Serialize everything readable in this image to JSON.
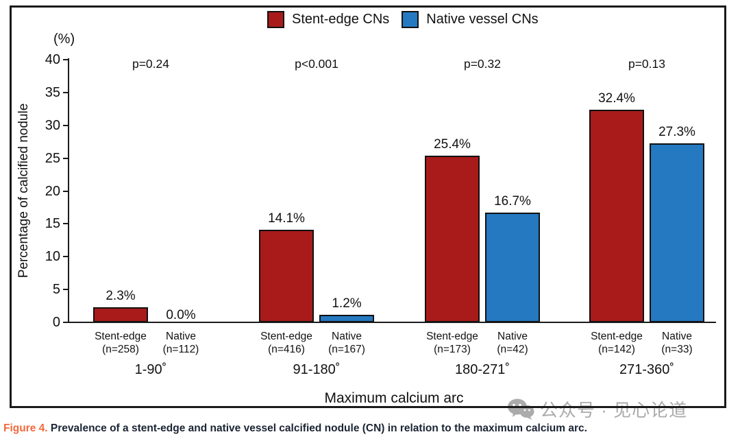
{
  "chart_data": {
    "type": "bar",
    "title": "",
    "ylabel": "Percentage of calcified nodule",
    "ylabel_unit": "(%)",
    "xlabel": "Maximum calcium arc",
    "ylim": [
      0,
      40
    ],
    "yticks": [
      0,
      5,
      10,
      15,
      20,
      25,
      30,
      35,
      40
    ],
    "grid": false,
    "legend_position": "top-center",
    "categories": [
      "1-90˚",
      "91-180˚",
      "180-271˚",
      "271-360˚"
    ],
    "series": [
      {
        "name": "Stent-edge CNs",
        "color": "#a91b1b",
        "values": [
          2.3,
          14.1,
          25.4,
          32.4
        ]
      },
      {
        "name": "Native vessel CNs",
        "color": "#2579c1",
        "values": [
          0.0,
          1.2,
          16.7,
          27.3
        ]
      }
    ],
    "p_values": [
      "p=0.24",
      "p<0.001",
      "p=0.32",
      "p=0.13"
    ],
    "groups": [
      {
        "category": "1-90˚",
        "p_value": "p=0.24",
        "bars": [
          {
            "series": "Stent-edge CNs",
            "value": 2.3,
            "value_label": "2.3%",
            "axis_label": "Stent-edge",
            "n_label": "(n=258)",
            "color": "#a91b1b"
          },
          {
            "series": "Native vessel CNs",
            "value": 0.0,
            "value_label": "0.0%",
            "axis_label": "Native",
            "n_label": "(n=112)",
            "color": "#2579c1"
          }
        ]
      },
      {
        "category": "91-180˚",
        "p_value": "p<0.001",
        "bars": [
          {
            "series": "Stent-edge CNs",
            "value": 14.1,
            "value_label": "14.1%",
            "axis_label": "Stent-edge",
            "n_label": "(n=416)",
            "color": "#a91b1b"
          },
          {
            "series": "Native vessel CNs",
            "value": 1.2,
            "value_label": "1.2%",
            "axis_label": "Native",
            "n_label": "(n=167)",
            "color": "#2579c1"
          }
        ]
      },
      {
        "category": "180-271˚",
        "p_value": "p=0.32",
        "bars": [
          {
            "series": "Stent-edge CNs",
            "value": 25.4,
            "value_label": "25.4%",
            "axis_label": "Stent-edge",
            "n_label": "(n=173)",
            "color": "#a91b1b"
          },
          {
            "series": "Native vessel CNs",
            "value": 16.7,
            "value_label": "16.7%",
            "axis_label": "Native",
            "n_label": "(n=42)",
            "color": "#2579c1"
          }
        ]
      },
      {
        "category": "271-360˚",
        "p_value": "p=0.13",
        "bars": [
          {
            "series": "Stent-edge CNs",
            "value": 32.4,
            "value_label": "32.4%",
            "axis_label": "Stent-edge",
            "n_label": "(n=142)",
            "color": "#a91b1b"
          },
          {
            "series": "Native vessel CNs",
            "value": 27.3,
            "value_label": "27.3%",
            "axis_label": "Native",
            "n_label": "(n=33)",
            "color": "#2579c1"
          }
        ]
      }
    ]
  },
  "legend": {
    "items": [
      {
        "label": "Stent-edge CNs",
        "color": "#a91b1b"
      },
      {
        "label": "Native vessel CNs",
        "color": "#2579c1"
      }
    ]
  },
  "caption": {
    "prefix": "Figure 4.",
    "text": " Prevalence of a stent-edge and native vessel calcified nodule (CN) in relation to the maximum calcium arc."
  },
  "watermark": {
    "icon": "wechat-icon",
    "text": "公众号 · 见心论道"
  }
}
